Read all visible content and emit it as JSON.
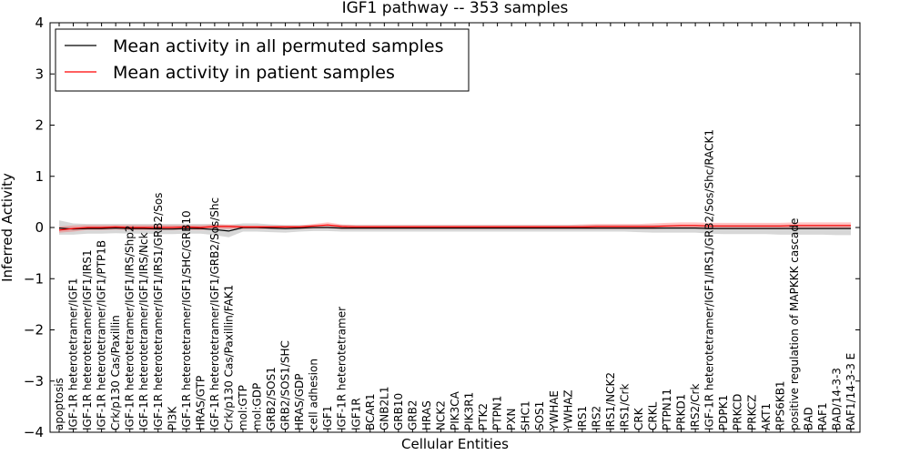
{
  "chart_data": {
    "type": "line",
    "title": "IGF1 pathway -- 353 samples",
    "xlabel": "Cellular Entities",
    "ylabel": "Inferred Activity",
    "ylim": [
      -4,
      4
    ],
    "yticks": [
      -4,
      -3,
      -2,
      -1,
      0,
      1,
      2,
      3,
      4
    ],
    "ytick_labels": [
      "−4",
      "−3",
      "−2",
      "−1",
      "0",
      "1",
      "2",
      "3",
      "4"
    ],
    "legend_position": "top-left",
    "categories": [
      "apoptosis",
      "IGF-1R heterotetramer/IGF1",
      "IGF-1R heterotetramer/IGF1/IRS1",
      "IGF-1R heterotetramer/IGF1/PTP1B",
      "Crk/p130 Cas/Paxillin",
      "IGF-1R heterotetramer/IGF1/IRS/Shp2",
      "IGF-1R heterotetramer/IGF1/IRS/Nck",
      "IGF-1R heterotetramer/IGF1/IRS1/GRB2/Sos",
      "PI3K",
      "IGF-1R heterotetramer/IGF1/SHC/GRB10",
      "HRAS/GTP",
      "IGF-1R heterotetramer/IGF1/GRB2/Sos/Shc",
      "Crk/p130 Cas/Paxillin/FAK1",
      "mol:GTP",
      "mol:GDP",
      "GRB2/SOS1",
      "GRB2/SOS1/SHC",
      "HRAS/GDP",
      "cell adhesion",
      "IGF1",
      "IGF-1R heterotetramer",
      "IGF1R",
      "BCAR1",
      "GNB2L1",
      "GRB10",
      "GRB2",
      "HRAS",
      "NCK2",
      "PIK3CA",
      "PIK3R1",
      "PTK2",
      "PTPN1",
      "PXN",
      "SHC1",
      "SOS1",
      "YWHAE",
      "YWHAZ",
      "IRS1",
      "IRS2",
      "IRS1/NCK2",
      "IRS1/Crk",
      "CRK",
      "CRKL",
      "PTPN11",
      "PRKD1",
      "IRS2/Crk",
      "IGF-1R heterotetramer/IGF1/IRS1/GRB2/Sos/Shc/RACK1",
      "PDPK1",
      "PRKCD",
      "PRKCZ",
      "AKT1",
      "RPS6KB1",
      "positive regulation of MAPKKK cascade",
      "BAD",
      "RAF1",
      "BAD/14-3-3",
      "RAF1/14-3-3 E"
    ],
    "series": [
      {
        "name": "Mean activity in all permuted samples",
        "color": "#000000",
        "values": [
          -0.01,
          -0.03,
          -0.02,
          -0.02,
          -0.01,
          -0.02,
          -0.02,
          -0.03,
          -0.03,
          -0.02,
          -0.02,
          -0.04,
          -0.07,
          0.0,
          0.0,
          -0.01,
          -0.02,
          -0.01,
          0.0,
          0.0,
          -0.01,
          -0.01,
          -0.01,
          -0.01,
          -0.01,
          -0.01,
          -0.01,
          -0.01,
          -0.01,
          -0.01,
          -0.01,
          -0.01,
          -0.01,
          -0.01,
          -0.01,
          -0.01,
          -0.01,
          -0.01,
          -0.01,
          -0.01,
          -0.01,
          -0.01,
          -0.01,
          -0.01,
          -0.01,
          -0.01,
          -0.02,
          -0.02,
          -0.02,
          -0.02,
          -0.02,
          -0.02,
          -0.02,
          -0.02,
          -0.02,
          -0.02,
          -0.02
        ],
        "band_upper": [
          0.14,
          0.08,
          0.07,
          0.07,
          0.07,
          0.07,
          0.07,
          0.07,
          0.07,
          0.07,
          0.07,
          0.07,
          0.05,
          0.08,
          0.08,
          0.06,
          0.05,
          0.05,
          0.05,
          0.05,
          0.05,
          0.05,
          0.05,
          0.05,
          0.05,
          0.05,
          0.05,
          0.05,
          0.05,
          0.05,
          0.05,
          0.05,
          0.05,
          0.05,
          0.05,
          0.05,
          0.05,
          0.05,
          0.05,
          0.05,
          0.05,
          0.05,
          0.05,
          0.05,
          0.05,
          0.05,
          0.05,
          0.05,
          0.05,
          0.05,
          0.05,
          0.05,
          0.05,
          0.05,
          0.05,
          0.05,
          0.05
        ],
        "band_lower": [
          -0.14,
          -0.14,
          -0.12,
          -0.12,
          -0.11,
          -0.12,
          -0.12,
          -0.13,
          -0.13,
          -0.12,
          -0.12,
          -0.15,
          -0.19,
          -0.08,
          -0.08,
          -0.09,
          -0.1,
          -0.08,
          -0.07,
          -0.07,
          -0.08,
          -0.08,
          -0.08,
          -0.08,
          -0.08,
          -0.08,
          -0.08,
          -0.08,
          -0.08,
          -0.08,
          -0.08,
          -0.08,
          -0.08,
          -0.08,
          -0.08,
          -0.08,
          -0.08,
          -0.08,
          -0.08,
          -0.08,
          -0.08,
          -0.09,
          -0.1,
          -0.1,
          -0.1,
          -0.1,
          -0.12,
          -0.13,
          -0.13,
          -0.13,
          -0.13,
          -0.14,
          -0.14,
          -0.14,
          -0.14,
          -0.15,
          -0.15
        ]
      },
      {
        "name": "Mean activity in patient samples",
        "color": "#ff0000",
        "values": [
          -0.05,
          -0.02,
          0.0,
          0.0,
          0.01,
          0.0,
          0.0,
          0.0,
          0.0,
          0.01,
          0.0,
          0.02,
          0.02,
          0.01,
          0.01,
          0.01,
          0.01,
          0.01,
          0.03,
          0.05,
          0.02,
          0.01,
          0.01,
          0.01,
          0.01,
          0.01,
          0.01,
          0.01,
          0.01,
          0.01,
          0.01,
          0.01,
          0.01,
          0.01,
          0.01,
          0.01,
          0.01,
          0.01,
          0.02,
          0.02,
          0.02,
          0.02,
          0.02,
          0.03,
          0.04,
          0.04,
          0.03,
          0.03,
          0.03,
          0.03,
          0.03,
          0.03,
          0.04,
          0.04,
          0.04,
          0.04,
          0.04
        ],
        "band_upper": [
          0.02,
          0.04,
          0.05,
          0.05,
          0.05,
          0.05,
          0.05,
          0.05,
          0.05,
          0.05,
          0.05,
          0.06,
          0.06,
          0.04,
          0.04,
          0.04,
          0.04,
          0.04,
          0.07,
          0.1,
          0.06,
          0.05,
          0.05,
          0.05,
          0.05,
          0.05,
          0.05,
          0.05,
          0.05,
          0.05,
          0.05,
          0.05,
          0.05,
          0.05,
          0.05,
          0.05,
          0.05,
          0.06,
          0.07,
          0.07,
          0.07,
          0.07,
          0.08,
          0.09,
          0.1,
          0.1,
          0.09,
          0.09,
          0.09,
          0.09,
          0.09,
          0.09,
          0.1,
          0.1,
          0.1,
          0.1,
          0.1
        ],
        "band_lower": [
          -0.1,
          -0.08,
          -0.05,
          -0.05,
          -0.04,
          -0.05,
          -0.05,
          -0.05,
          -0.05,
          -0.04,
          -0.05,
          -0.03,
          -0.03,
          -0.03,
          -0.03,
          -0.03,
          -0.03,
          -0.03,
          -0.02,
          -0.01,
          -0.03,
          -0.03,
          -0.03,
          -0.03,
          -0.03,
          -0.03,
          -0.03,
          -0.03,
          -0.03,
          -0.03,
          -0.03,
          -0.03,
          -0.03,
          -0.03,
          -0.03,
          -0.03,
          -0.03,
          -0.03,
          -0.03,
          -0.03,
          -0.03,
          -0.03,
          -0.03,
          -0.02,
          -0.02,
          -0.02,
          -0.03,
          -0.03,
          -0.03,
          -0.03,
          -0.03,
          -0.03,
          -0.02,
          -0.02,
          -0.02,
          -0.02,
          -0.02
        ]
      }
    ]
  }
}
